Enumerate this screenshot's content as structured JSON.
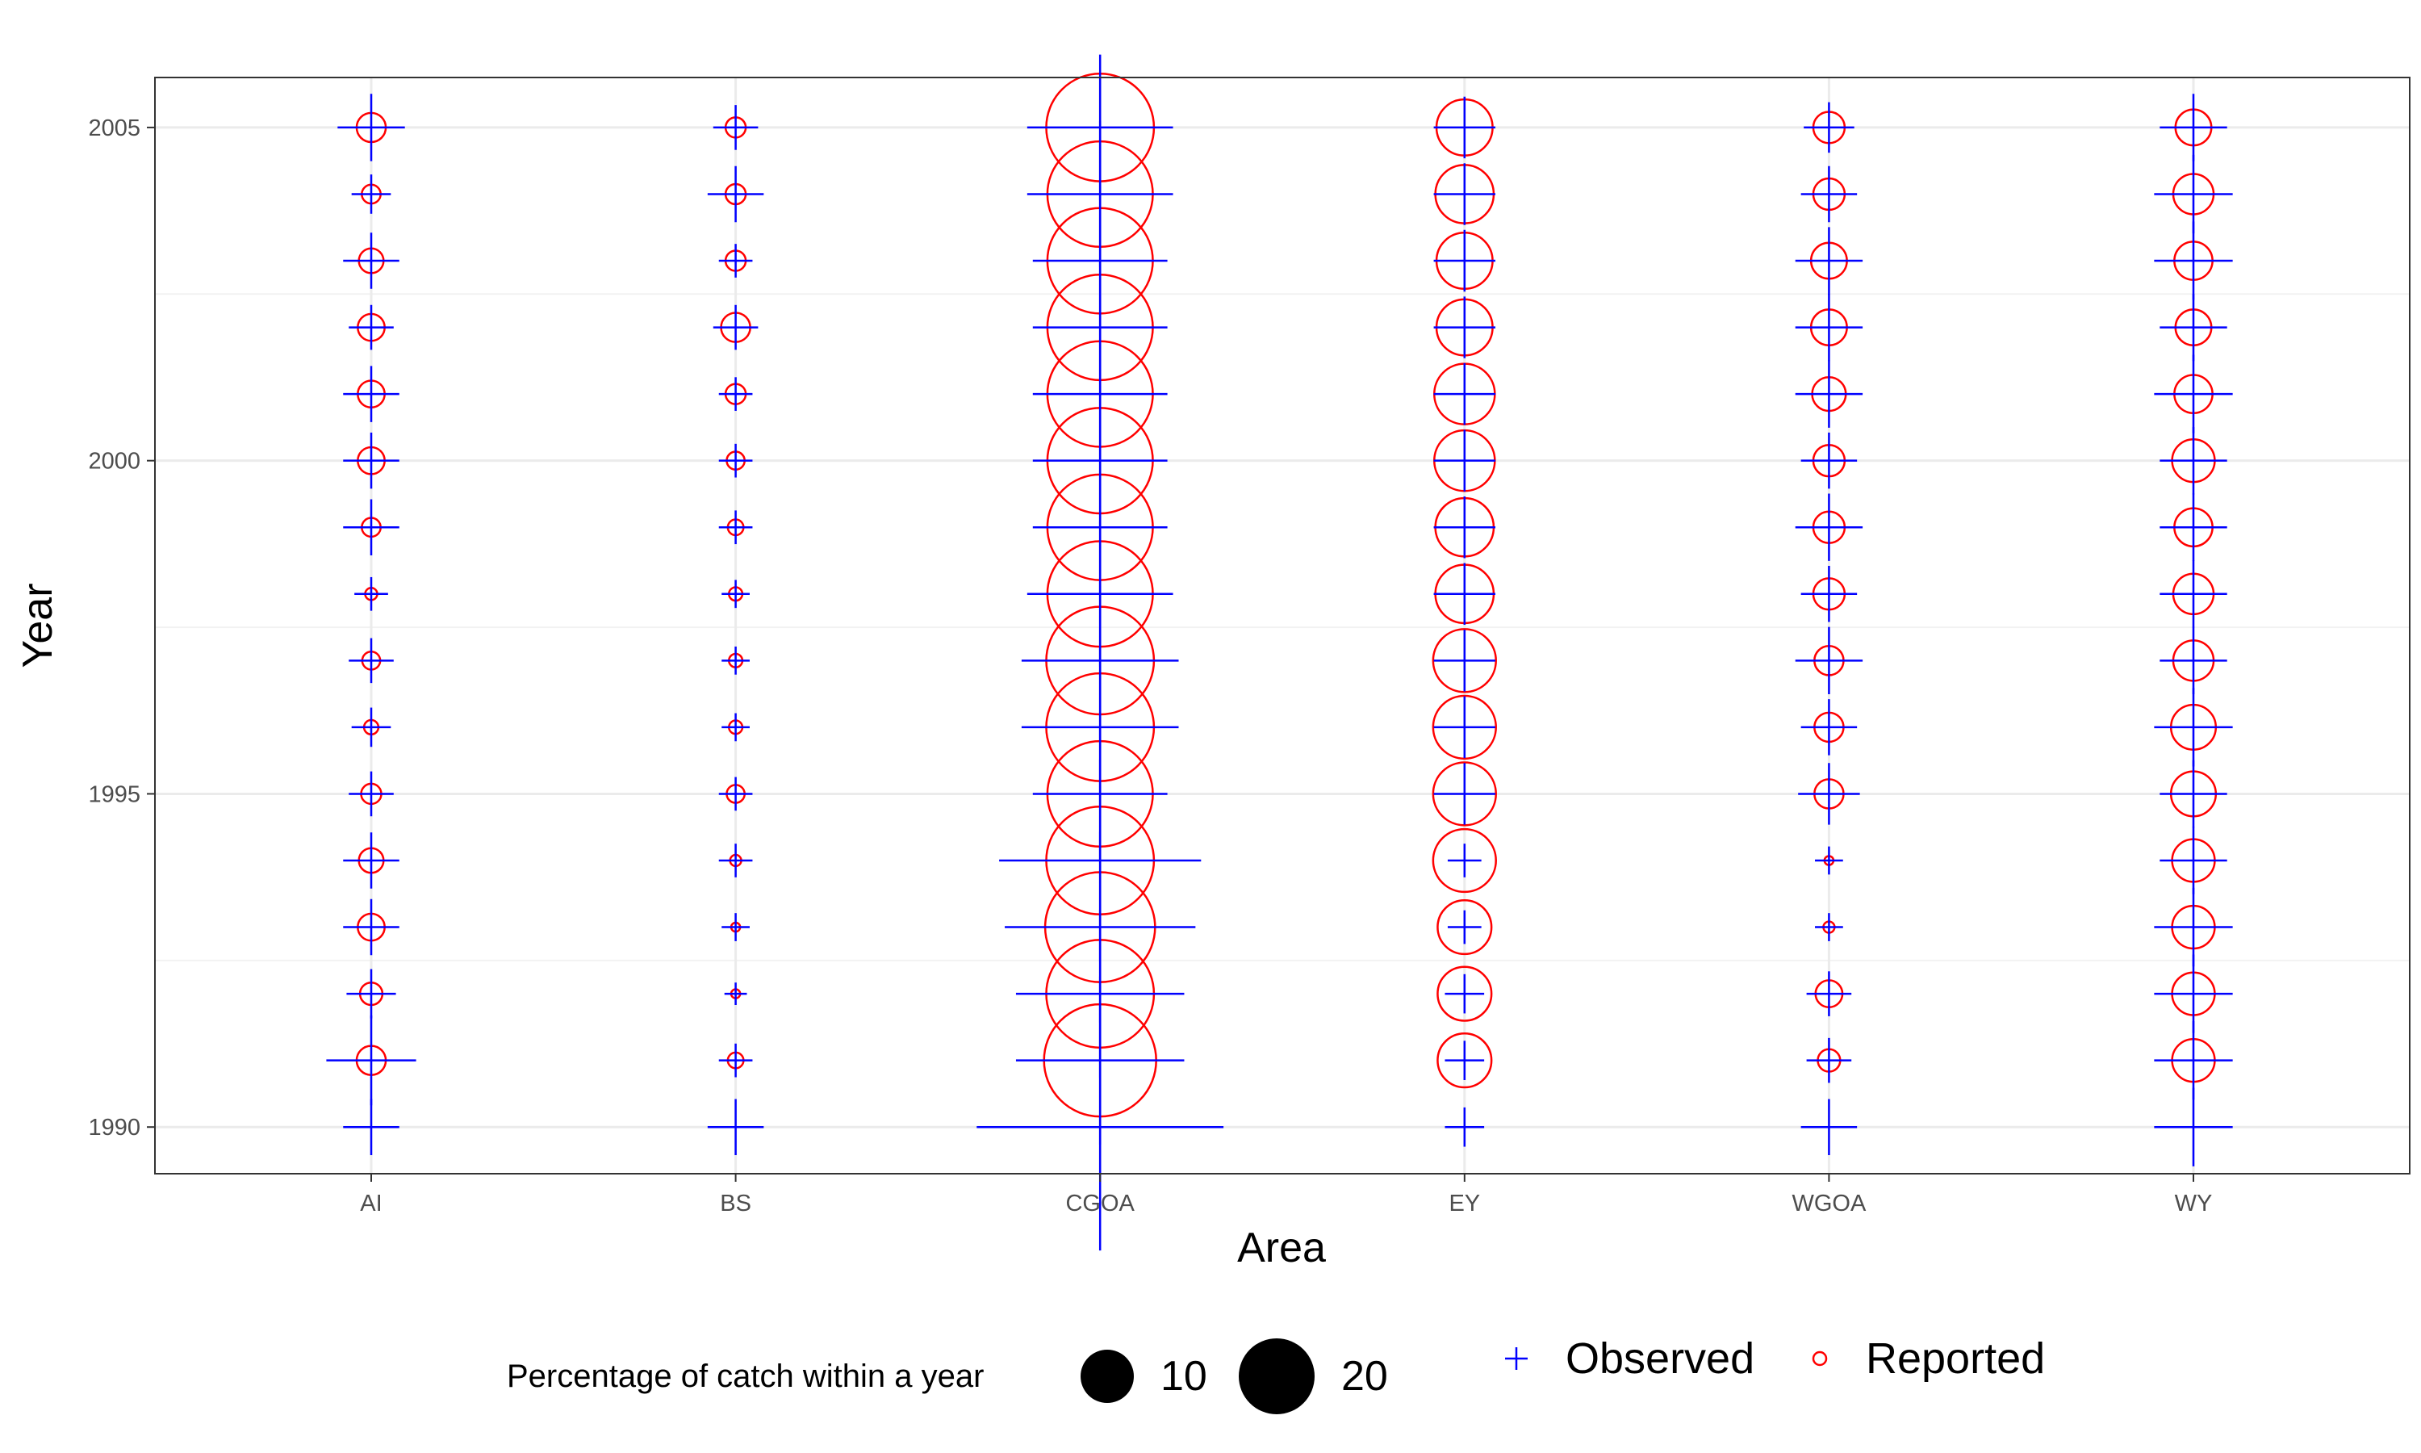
{
  "chart_data": {
    "type": "scatter",
    "title": "",
    "xlabel": "Area",
    "ylabel": "Year",
    "categories": [
      "AI",
      "BS",
      "CGOA",
      "EY",
      "WGOA",
      "WY"
    ],
    "ylim": [
      1989.3,
      2005.75
    ],
    "y_ticks": [
      1990,
      1995,
      2000,
      2005
    ],
    "years": [
      1990,
      1991,
      1992,
      1993,
      1994,
      1995,
      1996,
      1997,
      1998,
      1999,
      2000,
      2001,
      2002,
      2003,
      2004,
      2005
    ],
    "size_legend_title": "Percentage of catch within a year",
    "size_legend_values": [
      10,
      20
    ],
    "grid": true,
    "legend_position": "bottom",
    "series": [
      {
        "name": "Observed",
        "marker": "plus",
        "color": "#0000ff",
        "values": {
          "AI": [
            5.0,
            8.0,
            4.4,
            5.0,
            5.0,
            4.0,
            3.5,
            4.0,
            3.0,
            5.0,
            5.0,
            5.0,
            4.0,
            5.0,
            3.5,
            6.0
          ],
          "BS": [
            5.0,
            3.0,
            2.0,
            2.5,
            3.0,
            3.0,
            2.5,
            2.5,
            2.5,
            3.0,
            3.0,
            3.0,
            4.0,
            3.0,
            5.0,
            4.0
          ],
          "CGOA": [
            22.0,
            15.0,
            15.0,
            17.0,
            18.0,
            12.0,
            14.0,
            14.0,
            13.0,
            12.0,
            12.0,
            12.0,
            12.0,
            12.0,
            13.0,
            13.0
          ],
          "EY": [
            3.5,
            3.5,
            3.5,
            3.0,
            3.0,
            5.5,
            5.5,
            5.5,
            5.5,
            5.5,
            5.5,
            5.5,
            5.5,
            5.5,
            5.5,
            5.5
          ],
          "WGOA": [
            5.0,
            4.0,
            4.0,
            2.5,
            2.5,
            5.5,
            5.0,
            6.0,
            5.0,
            6.0,
            5.0,
            6.0,
            6.0,
            6.0,
            5.0,
            4.5
          ],
          "WY": [
            7.0,
            7.0,
            7.0,
            7.0,
            6.0,
            6.0,
            7.0,
            6.0,
            6.0,
            6.0,
            6.0,
            7.0,
            6.0,
            7.0,
            7.0,
            6.0
          ]
        }
      },
      {
        "name": "Reported",
        "marker": "circle",
        "color": "#ff0000",
        "values": {
          "AI": [
            0,
            6.5,
            5.0,
            6.0,
            5.5,
            4.5,
            3.2,
            4.0,
            2.7,
            4.2,
            6.0,
            6.0,
            6.0,
            5.5,
            4.2,
            6.5
          ],
          "BS": [
            0,
            3.5,
            2.0,
            2.0,
            2.5,
            4.0,
            3.0,
            3.0,
            3.0,
            3.5,
            4.0,
            4.5,
            6.5,
            4.5,
            4.5,
            4.5
          ],
          "CGOA": [
            0,
            25.0,
            24.0,
            24.5,
            24.0,
            23.5,
            24.0,
            24.0,
            23.5,
            23.5,
            23.5,
            23.5,
            23.5,
            23.5,
            23.5,
            24.0
          ],
          "EY": [
            0,
            12.0,
            12.0,
            12.0,
            14.0,
            14.0,
            14.0,
            14.0,
            13.0,
            13.0,
            13.5,
            13.5,
            12.5,
            12.5,
            13.0,
            12.5
          ],
          "WGOA": [
            0,
            5.0,
            6.0,
            2.5,
            2.0,
            6.5,
            6.5,
            6.5,
            7.0,
            7.0,
            7.0,
            7.5,
            8.0,
            8.0,
            7.0,
            7.0
          ],
          "WY": [
            0,
            9.5,
            9.5,
            9.5,
            9.5,
            10.0,
            10.0,
            9.0,
            9.0,
            8.5,
            9.5,
            8.5,
            8.0,
            8.5,
            9.0,
            8.0
          ]
        }
      }
    ]
  }
}
